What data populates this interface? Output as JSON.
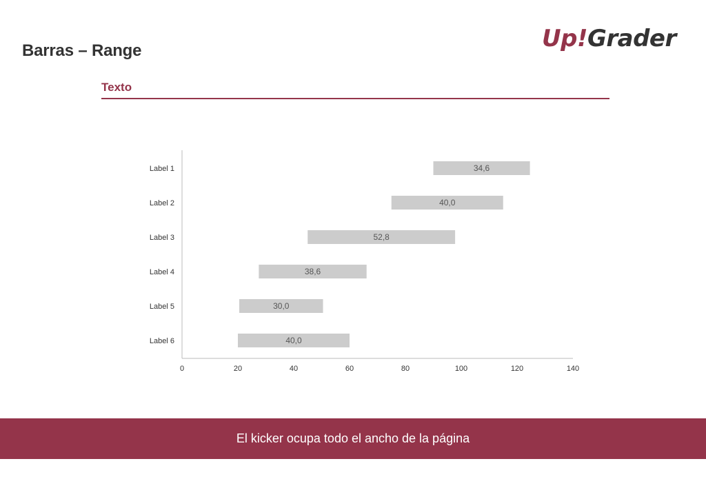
{
  "header": {
    "title": "Barras – Range",
    "logo": {
      "part1": "Up",
      "part2": "!",
      "part3": "Grader"
    }
  },
  "subtitle": "Texto",
  "kicker": "El kicker ocupa todo el ancho de la página",
  "colors": {
    "accent": "#94344a",
    "title": "#333333",
    "bar": "#cccccc",
    "bar_label": "#555555",
    "axis": "#bbbbbb",
    "tick_label": "#333333",
    "logo_dark": "#333333"
  },
  "chart_data": {
    "type": "bar",
    "orientation": "horizontal",
    "subtype": "range",
    "categories": [
      "Label 1",
      "Label 2",
      "Label 3",
      "Label 4",
      "Label 5",
      "Label 6"
    ],
    "ranges": [
      {
        "start": 90,
        "end": 124.6,
        "label": "34,6"
      },
      {
        "start": 75,
        "end": 115,
        "label": "40,0"
      },
      {
        "start": 45,
        "end": 97.8,
        "label": "52,8"
      },
      {
        "start": 27.5,
        "end": 66.1,
        "label": "38,6"
      },
      {
        "start": 20.5,
        "end": 50.5,
        "label": "30,0"
      },
      {
        "start": 20,
        "end": 60,
        "label": "40,0"
      }
    ],
    "xlim": [
      0,
      140
    ],
    "xticks": [
      0,
      20,
      40,
      60,
      80,
      100,
      120,
      140
    ],
    "grid": false,
    "legend": "none"
  }
}
